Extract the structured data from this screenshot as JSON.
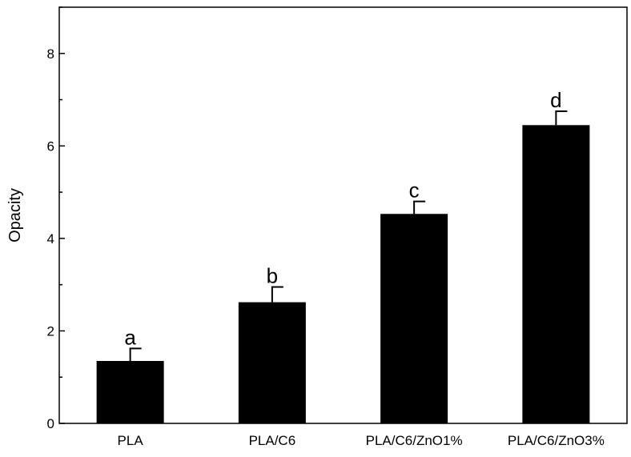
{
  "chart_data": {
    "type": "bar",
    "categories": [
      "PLA",
      "PLA/C6",
      "PLA/C6/ZnO1%",
      "PLA/C6/ZnO3%"
    ],
    "values": [
      1.35,
      2.62,
      4.53,
      6.45
    ],
    "errors": [
      0.27,
      0.33,
      0.27,
      0.3
    ],
    "annotations": [
      "a",
      "b",
      "c",
      "d"
    ],
    "title": "",
    "xlabel": "",
    "ylabel": "Opacity",
    "ylim": [
      0,
      9
    ],
    "yticks": [
      0,
      2,
      4,
      6,
      8
    ],
    "grid": false,
    "colors": {
      "bar": "#000000",
      "axis": "#000000"
    }
  }
}
